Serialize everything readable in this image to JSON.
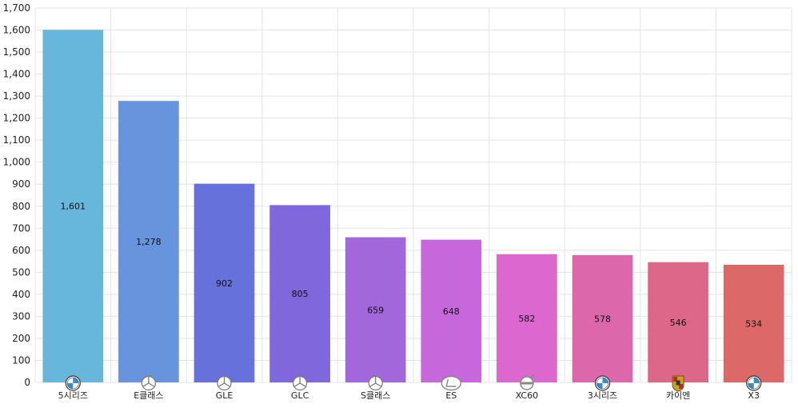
{
  "chart_data": {
    "type": "bar",
    "title": "",
    "xlabel": "",
    "ylabel": "",
    "ylim": [
      0,
      1700
    ],
    "ytick_step": 100,
    "grid": true,
    "legend": "none",
    "categories": [
      "5시리즈",
      "E클래스",
      "GLE",
      "GLC",
      "S클래스",
      "ES",
      "XC60",
      "3시리즈",
      "카이엔",
      "X3"
    ],
    "values": [
      1601,
      1278,
      902,
      805,
      659,
      648,
      582,
      578,
      546,
      534
    ],
    "value_labels": [
      "1,601",
      "1,278",
      "902",
      "805",
      "659",
      "648",
      "582",
      "578",
      "546",
      "534"
    ],
    "ytick_labels": [
      "0",
      "100",
      "200",
      "300",
      "400",
      "500",
      "600",
      "700",
      "800",
      "900",
      "1,000",
      "1,100",
      "1,200",
      "1,300",
      "1,400",
      "1,500",
      "1,600",
      "1,700"
    ],
    "bar_colors": [
      "#67b7dc",
      "#6794dc",
      "#6771dc",
      "#8067dc",
      "#a367dc",
      "#c767dc",
      "#dc67ce",
      "#dc67ab",
      "#dc6788",
      "#dc6967"
    ],
    "brand_icons": [
      "bmw-logo-icon",
      "mercedes-logo-icon",
      "mercedes-logo-icon",
      "mercedes-logo-icon",
      "mercedes-logo-icon",
      "lexus-logo-icon",
      "volvo-logo-icon",
      "bmw-logo-icon",
      "porsche-logo-icon",
      "bmw-logo-icon"
    ]
  }
}
